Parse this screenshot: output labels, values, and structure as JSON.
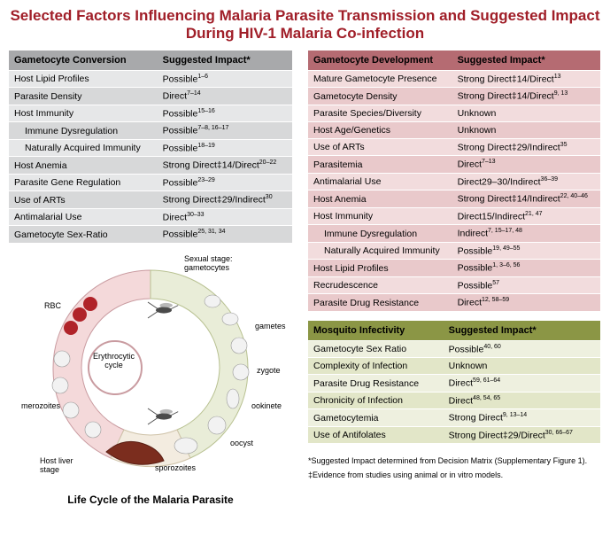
{
  "title": "Selected Factors Influencing Malaria Parasite Transmission and Suggested Impact During HIV-1 Malaria Co-infection",
  "colors": {
    "title": "#a01e28",
    "gray_header": "#a8a9ab",
    "gray_row_odd": "#e6e7e8",
    "gray_row_even": "#d7d8d9",
    "pink_header": "#b56b72",
    "pink_row_odd": "#f2dcdd",
    "pink_row_even": "#e9c9cb",
    "olive_header": "#8b9645",
    "olive_row_odd": "#eef0df",
    "olive_row_even": "#e2e6c8",
    "background": "#ffffff"
  },
  "table_gc": {
    "h1": "Gametocyte Conversion",
    "h2": "Suggested Impact*",
    "rows": [
      {
        "f": "Host Lipid Profiles",
        "i": "Possible",
        "s": "1–6",
        "indent": false
      },
      {
        "f": "Parasite Density",
        "i": "Direct",
        "s": "7–14",
        "indent": false
      },
      {
        "f": "Host Immunity",
        "i": "Possible",
        "s": "15–16",
        "indent": false
      },
      {
        "f": "Immune Dysregulation",
        "i": "Possible",
        "s": "7–8, 16–17",
        "indent": true
      },
      {
        "f": "Naturally Acquired Immunity",
        "i": "Possible",
        "s": "18–19",
        "indent": true
      },
      {
        "f": "Host Anemia",
        "i": "Strong Direct‡14/Direct",
        "s": "20–22",
        "indent": false
      },
      {
        "f": "Parasite Gene Regulation",
        "i": "Possible",
        "s": "23–29",
        "indent": false
      },
      {
        "f": "Use of ARTs",
        "i": "Strong Direct‡29/Indirect",
        "s": "30",
        "indent": false
      },
      {
        "f": "Antimalarial Use",
        "i": "Direct",
        "s": "30–33",
        "indent": false
      },
      {
        "f": "Gametocyte Sex-Ratio",
        "i": "Possible",
        "s": "25, 31, 34",
        "indent": false
      }
    ]
  },
  "table_gd": {
    "h1": "Gametocyte Development",
    "h2": "Suggested Impact*",
    "rows": [
      {
        "f": "Mature Gametocyte Presence",
        "i": "Strong Direct‡14/Direct",
        "s": "13",
        "indent": false
      },
      {
        "f": "Gametocyte Density",
        "i": "Strong Direct‡14/Direct",
        "s": "9, 13",
        "indent": false
      },
      {
        "f": "Parasite Species/Diversity",
        "i": "Unknown",
        "s": "",
        "indent": false
      },
      {
        "f": "Host Age/Genetics",
        "i": "Unknown",
        "s": "",
        "indent": false
      },
      {
        "f": "Use of ARTs",
        "i": "Strong Direct‡29/Indirect",
        "s": "35",
        "indent": false
      },
      {
        "f": "Parasitemia",
        "i": "Direct",
        "s": "7–13",
        "indent": false
      },
      {
        "f": "Antimalarial Use",
        "i": "Direct29–30/Indirect",
        "s": "36–39",
        "indent": false
      },
      {
        "f": "Host Anemia",
        "i": "Strong Direct‡14/Indirect",
        "s": "22, 40–46",
        "indent": false
      },
      {
        "f": "Host Immunity",
        "i": "Direct15/Indirect",
        "s": "21, 47",
        "indent": false
      },
      {
        "f": "Immune Dysregulation",
        "i": "Indirect",
        "s": "7, 15–17, 48",
        "indent": true
      },
      {
        "f": "Naturally Acquired Immunity",
        "i": "Possible",
        "s": "19, 49–55",
        "indent": true
      },
      {
        "f": "Host Lipid Profiles",
        "i": "Possible",
        "s": "1, 3–6, 56",
        "indent": false
      },
      {
        "f": "Recrudescence",
        "i": "Possible",
        "s": "57",
        "indent": false
      },
      {
        "f": "Parasite Drug Resistance",
        "i": "Direct",
        "s": "12, 58–59",
        "indent": false
      }
    ]
  },
  "table_mi": {
    "h1": "Mosquito Infectivity",
    "h2": "Suggested Impact*",
    "rows": [
      {
        "f": "Gametocyte Sex Ratio",
        "i": "Possible",
        "s": "40, 60",
        "indent": false
      },
      {
        "f": "Complexity of Infection",
        "i": "Unknown",
        "s": "",
        "indent": false
      },
      {
        "f": "Parasite Drug Resistance",
        "i": "Direct",
        "s": "59, 61–64",
        "indent": false
      },
      {
        "f": "Chronicity of Infection",
        "i": "Direct",
        "s": "48, 54, 65",
        "indent": false
      },
      {
        "f": "Gametocytemia",
        "i": "Strong Direct",
        "s": "9, 13–14",
        "indent": false
      },
      {
        "f": "Use of Antifolates",
        "i": "Strong Direct‡29/Direct",
        "s": "30, 66–67",
        "indent": false
      }
    ]
  },
  "diagram": {
    "caption": "Life Cycle of the Malaria Parasite",
    "labels": {
      "sexual_stage": "Sexual stage:\ngametocytes",
      "rbc": "RBC",
      "erythrocytic": "Erythrocytic\ncycle",
      "merozoites": "merozoites",
      "host_liver": "Host liver\nstage",
      "gametes": "gametes",
      "zygote": "zygote",
      "ookinete": "ookinete",
      "oocyst": "oocyst",
      "sporozoites": "sporozoites"
    }
  },
  "footnotes": {
    "l1": "*Suggested Impact determined from Decision Matrix (Supplementary Figure 1).",
    "l2": "‡Evidence from studies using animal or in vitro models."
  }
}
